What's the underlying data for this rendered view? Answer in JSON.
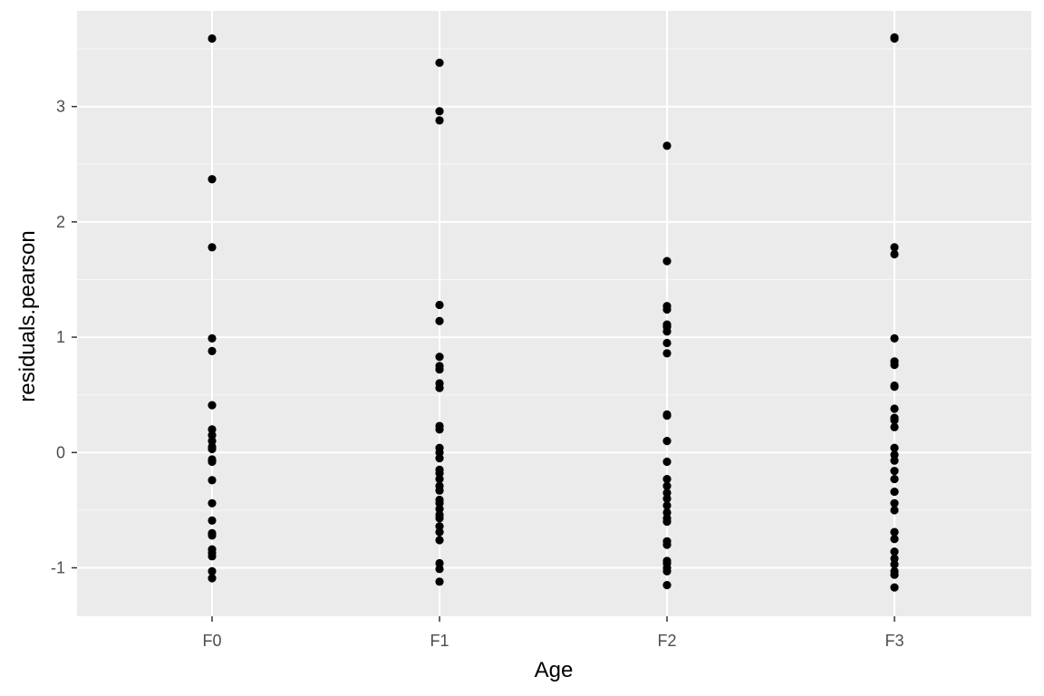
{
  "chart_data": {
    "type": "scatter",
    "title": "",
    "xlabel": "Age",
    "ylabel": "residuals.pearson",
    "categories": [
      "F0",
      "F1",
      "F2",
      "F3"
    ],
    "yticks": [
      -1,
      0,
      1,
      2,
      3
    ],
    "ylim": [
      -1.42,
      3.83
    ],
    "grid": true,
    "legend": "none",
    "colors": {
      "panel_background": "#ebebeb",
      "grid_major": "#ffffff",
      "grid_minor": "#f7f7f7",
      "point": "#000000"
    },
    "series": [
      {
        "values": [
          {
            "x": "F0",
            "y": 3.59
          },
          {
            "x": "F0",
            "y": 2.37
          },
          {
            "x": "F0",
            "y": 1.78
          },
          {
            "x": "F0",
            "y": 0.99
          },
          {
            "x": "F0",
            "y": 0.88
          },
          {
            "x": "F0",
            "y": 0.41
          },
          {
            "x": "F0",
            "y": 0.2
          },
          {
            "x": "F0",
            "y": 0.15
          },
          {
            "x": "F0",
            "y": 0.1
          },
          {
            "x": "F0",
            "y": 0.05
          },
          {
            "x": "F0",
            "y": 0.03
          },
          {
            "x": "F0",
            "y": -0.06
          },
          {
            "x": "F0",
            "y": -0.08
          },
          {
            "x": "F0",
            "y": -0.24
          },
          {
            "x": "F0",
            "y": -0.44
          },
          {
            "x": "F0",
            "y": -0.59
          },
          {
            "x": "F0",
            "y": -0.7
          },
          {
            "x": "F0",
            "y": -0.72
          },
          {
            "x": "F0",
            "y": -0.84
          },
          {
            "x": "F0",
            "y": -0.87
          },
          {
            "x": "F0",
            "y": -0.9
          },
          {
            "x": "F0",
            "y": -1.03
          },
          {
            "x": "F0",
            "y": -1.09
          },
          {
            "x": "F1",
            "y": 3.38
          },
          {
            "x": "F1",
            "y": 2.96
          },
          {
            "x": "F1",
            "y": 2.88
          },
          {
            "x": "F1",
            "y": 1.28
          },
          {
            "x": "F1",
            "y": 1.14
          },
          {
            "x": "F1",
            "y": 0.83
          },
          {
            "x": "F1",
            "y": 0.75
          },
          {
            "x": "F1",
            "y": 0.72
          },
          {
            "x": "F1",
            "y": 0.6
          },
          {
            "x": "F1",
            "y": 0.56
          },
          {
            "x": "F1",
            "y": 0.23
          },
          {
            "x": "F1",
            "y": 0.2
          },
          {
            "x": "F1",
            "y": 0.04
          },
          {
            "x": "F1",
            "y": 0.0
          },
          {
            "x": "F1",
            "y": -0.05
          },
          {
            "x": "F1",
            "y": -0.15
          },
          {
            "x": "F1",
            "y": -0.18
          },
          {
            "x": "F1",
            "y": -0.23
          },
          {
            "x": "F1",
            "y": -0.29
          },
          {
            "x": "F1",
            "y": -0.33
          },
          {
            "x": "F1",
            "y": -0.41
          },
          {
            "x": "F1",
            "y": -0.44
          },
          {
            "x": "F1",
            "y": -0.49
          },
          {
            "x": "F1",
            "y": -0.54
          },
          {
            "x": "F1",
            "y": -0.57
          },
          {
            "x": "F1",
            "y": -0.64
          },
          {
            "x": "F1",
            "y": -0.69
          },
          {
            "x": "F1",
            "y": -0.76
          },
          {
            "x": "F1",
            "y": -0.96
          },
          {
            "x": "F1",
            "y": -1.01
          },
          {
            "x": "F1",
            "y": -1.12
          },
          {
            "x": "F2",
            "y": 2.66
          },
          {
            "x": "F2",
            "y": 1.66
          },
          {
            "x": "F2",
            "y": 1.27
          },
          {
            "x": "F2",
            "y": 1.24
          },
          {
            "x": "F2",
            "y": 1.11
          },
          {
            "x": "F2",
            "y": 1.09
          },
          {
            "x": "F2",
            "y": 1.05
          },
          {
            "x": "F2",
            "y": 0.95
          },
          {
            "x": "F2",
            "y": 0.86
          },
          {
            "x": "F2",
            "y": 0.33
          },
          {
            "x": "F2",
            "y": 0.32
          },
          {
            "x": "F2",
            "y": 0.1
          },
          {
            "x": "F2",
            "y": -0.08
          },
          {
            "x": "F2",
            "y": -0.23
          },
          {
            "x": "F2",
            "y": -0.29
          },
          {
            "x": "F2",
            "y": -0.35
          },
          {
            "x": "F2",
            "y": -0.4
          },
          {
            "x": "F2",
            "y": -0.46
          },
          {
            "x": "F2",
            "y": -0.52
          },
          {
            "x": "F2",
            "y": -0.57
          },
          {
            "x": "F2",
            "y": -0.6
          },
          {
            "x": "F2",
            "y": -0.77
          },
          {
            "x": "F2",
            "y": -0.8
          },
          {
            "x": "F2",
            "y": -0.94
          },
          {
            "x": "F2",
            "y": -0.96
          },
          {
            "x": "F2",
            "y": -1.0
          },
          {
            "x": "F2",
            "y": -1.03
          },
          {
            "x": "F2",
            "y": -1.15
          },
          {
            "x": "F3",
            "y": 3.6
          },
          {
            "x": "F3",
            "y": 3.59
          },
          {
            "x": "F3",
            "y": 1.78
          },
          {
            "x": "F3",
            "y": 1.72
          },
          {
            "x": "F3",
            "y": 0.99
          },
          {
            "x": "F3",
            "y": 0.79
          },
          {
            "x": "F3",
            "y": 0.76
          },
          {
            "x": "F3",
            "y": 0.58
          },
          {
            "x": "F3",
            "y": 0.57
          },
          {
            "x": "F3",
            "y": 0.38
          },
          {
            "x": "F3",
            "y": 0.3
          },
          {
            "x": "F3",
            "y": 0.28
          },
          {
            "x": "F3",
            "y": 0.22
          },
          {
            "x": "F3",
            "y": 0.04
          },
          {
            "x": "F3",
            "y": -0.02
          },
          {
            "x": "F3",
            "y": -0.07
          },
          {
            "x": "F3",
            "y": -0.16
          },
          {
            "x": "F3",
            "y": -0.23
          },
          {
            "x": "F3",
            "y": -0.34
          },
          {
            "x": "F3",
            "y": -0.44
          },
          {
            "x": "F3",
            "y": -0.5
          },
          {
            "x": "F3",
            "y": -0.69
          },
          {
            "x": "F3",
            "y": -0.75
          },
          {
            "x": "F3",
            "y": -0.86
          },
          {
            "x": "F3",
            "y": -0.92
          },
          {
            "x": "F3",
            "y": -0.97
          },
          {
            "x": "F3",
            "y": -1.03
          },
          {
            "x": "F3",
            "y": -1.06
          },
          {
            "x": "F3",
            "y": -1.17
          }
        ]
      }
    ]
  }
}
